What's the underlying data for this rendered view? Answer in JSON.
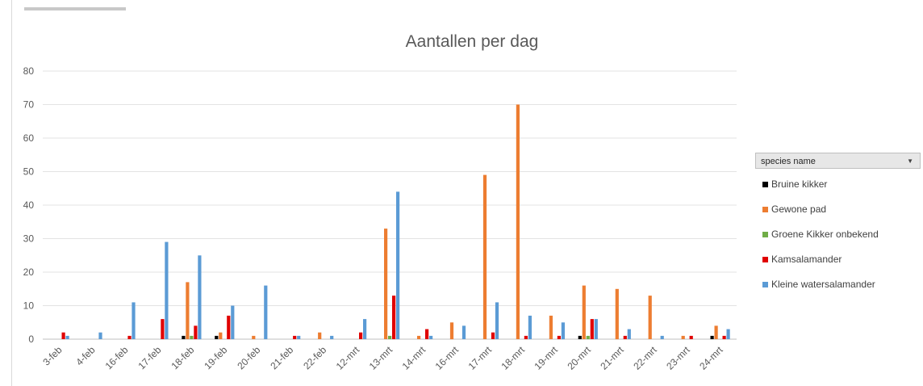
{
  "chart_data": {
    "type": "bar",
    "title": "Aantallen per dag",
    "xlabel": "",
    "ylabel": "",
    "ylim": [
      0,
      80
    ],
    "yticks": [
      "0",
      "10",
      "20",
      "30",
      "40",
      "50",
      "60",
      "70",
      "80"
    ],
    "grid": true,
    "legend_position": "right",
    "legend_title": "species name",
    "categories": [
      "3-feb",
      "4-feb",
      "16-feb",
      "17-feb",
      "18-feb",
      "19-feb",
      "20-feb",
      "21-feb",
      "22-feb",
      "12-mrt",
      "13-mrt",
      "14-mrt",
      "16-mrt",
      "17-mrt",
      "18-mrt",
      "19-mrt",
      "20-mrt",
      "21-mrt",
      "22-mrt",
      "23-mrt",
      "24-mrt"
    ],
    "series": [
      {
        "name": "Bruine kikker",
        "color": "#000000",
        "values": [
          0,
          0,
          0,
          0,
          1,
          1,
          0,
          0,
          0,
          0,
          0,
          0,
          0,
          0,
          0,
          0,
          1,
          0,
          0,
          0,
          1
        ]
      },
      {
        "name": "Gewone pad",
        "color": "#ed7d31",
        "values": [
          0,
          0,
          0,
          0,
          17,
          2,
          1,
          0,
          2,
          0,
          33,
          1,
          5,
          49,
          70,
          7,
          16,
          15,
          13,
          1,
          4
        ]
      },
      {
        "name": "Groene Kikker onbekend",
        "color": "#70ad47",
        "values": [
          0,
          0,
          0,
          0,
          1,
          0,
          0,
          0,
          0,
          0,
          1,
          0,
          0,
          0,
          0,
          0,
          1,
          0,
          0,
          0,
          0
        ]
      },
      {
        "name": "Kamsalamander",
        "color": "#e00000",
        "values": [
          2,
          0,
          1,
          6,
          4,
          7,
          0,
          1,
          0,
          2,
          13,
          3,
          0,
          2,
          1,
          1,
          6,
          1,
          0,
          1,
          1
        ]
      },
      {
        "name": "Kleine watersalamander",
        "color": "#5b9bd5",
        "values": [
          1,
          2,
          11,
          29,
          25,
          10,
          16,
          1,
          1,
          6,
          44,
          1,
          4,
          11,
          7,
          5,
          6,
          3,
          1,
          0,
          3
        ]
      }
    ]
  },
  "legend": {
    "dropdown_icon": "dropdown-arrow-icon",
    "dropdown_glyph": "▼"
  }
}
